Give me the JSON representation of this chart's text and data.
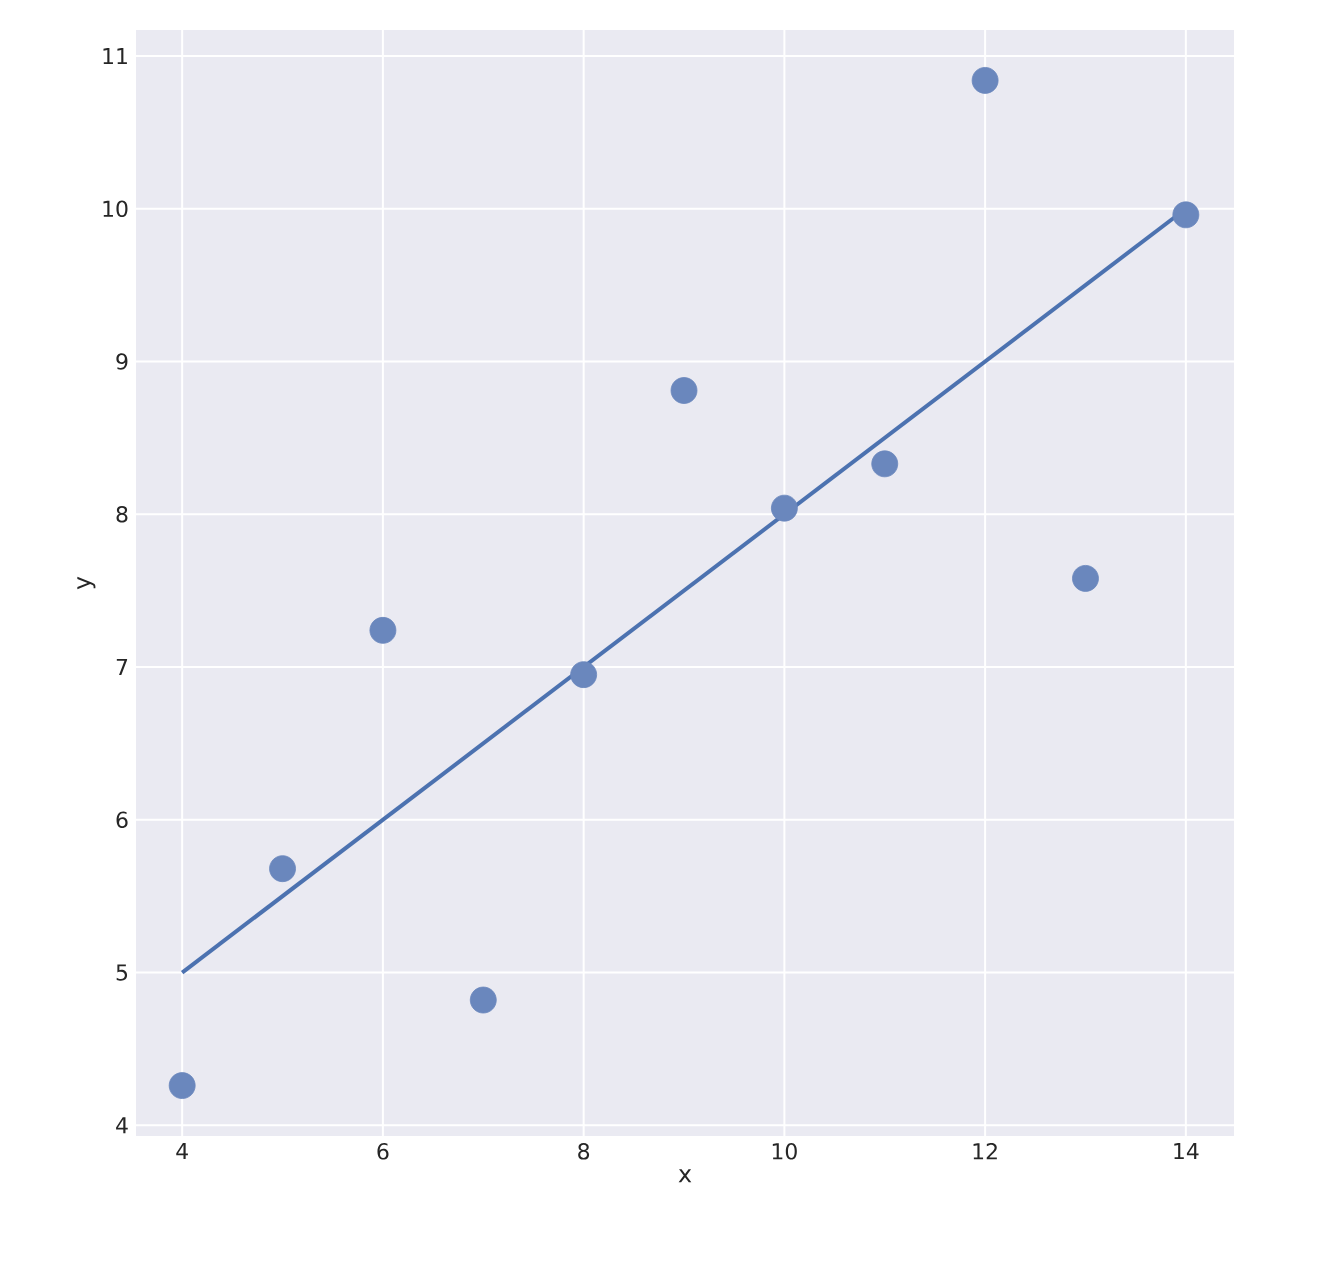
{
  "chart_data": {
    "type": "scatter",
    "xlabel": "x",
    "ylabel": "y",
    "xlim": [
      3.54,
      14.48
    ],
    "ylim": [
      3.93,
      11.17
    ],
    "xticks": [
      4,
      6,
      8,
      10,
      12,
      14
    ],
    "yticks": [
      4,
      5,
      6,
      7,
      8,
      9,
      10,
      11
    ],
    "grid": true,
    "series": [
      {
        "marker": "circle",
        "color": "#6a87bd",
        "x": [
          10,
          8,
          13,
          9,
          11,
          14,
          6,
          4,
          12,
          7,
          5
        ],
        "values": [
          8.04,
          6.95,
          7.58,
          8.81,
          8.33,
          9.96,
          7.24,
          4.26,
          10.84,
          4.82,
          5.68
        ]
      },
      {
        "type": "line",
        "color": "#4c72b0",
        "x": [
          4,
          14
        ],
        "values": [
          5,
          10
        ],
        "line_style": "solid",
        "marker": "none"
      }
    ]
  }
}
